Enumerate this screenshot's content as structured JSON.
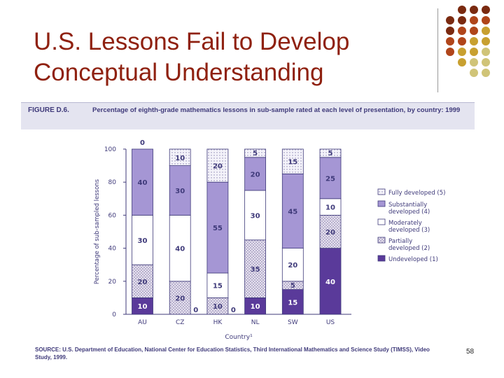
{
  "slide": {
    "title_line1": "U.S. Lessons Fail to Develop",
    "title_line2": "Conceptual Understanding",
    "page_number": "58",
    "title_color": "#8f2110",
    "decor_colors": [
      "#7a2a10",
      "#b0451a",
      "#c8a030",
      "#d0c478"
    ]
  },
  "figure": {
    "label": "FIGURE D.6.",
    "caption": "Percentage of eighth-grade mathematics lessons in sub-sample rated at each level of presentation, by country: 1999",
    "source": "SOURCE: U.S. Department of Education, National Center for Education Statistics, Third International Mathematics and Science Study (TIMSS), Video Study, 1999."
  },
  "chart_data": {
    "type": "bar",
    "stacked": true,
    "categories": [
      "AU",
      "CZ",
      "HK",
      "NL",
      "SW",
      "US"
    ],
    "xlabel": "Country¹",
    "ylabel": "Percentage of sub-sampled lessons",
    "ylim": [
      0,
      100
    ],
    "yticks": [
      0,
      20,
      40,
      60,
      80,
      100
    ],
    "legend_position": "right",
    "series": [
      {
        "name": "Undeveloped (1)",
        "values": [
          10,
          0,
          0,
          10,
          15,
          40
        ],
        "color": "#5a3a9a",
        "pattern": "solid"
      },
      {
        "name": "Partially developed (2)",
        "values": [
          20,
          20,
          10,
          35,
          5,
          20
        ],
        "color": "#d6cfe6",
        "pattern": "crosshatch"
      },
      {
        "name": "Moderately developed (3)",
        "values": [
          30,
          40,
          15,
          30,
          20,
          10
        ],
        "color": "#ffffff",
        "pattern": "blank"
      },
      {
        "name": "Substantially developed (4)",
        "values": [
          40,
          30,
          55,
          20,
          45,
          25
        ],
        "color": "#a596d4",
        "pattern": "solid"
      },
      {
        "name": "Fully developed (5)",
        "values": [
          0,
          10,
          20,
          5,
          15,
          5
        ],
        "color": "#ece9f6",
        "pattern": "dotted"
      }
    ],
    "legend_labels": [
      [
        "Fully developed (5)"
      ],
      [
        "Substantially",
        "developed (4)"
      ],
      [
        "Moderately",
        "developed (3)"
      ],
      [
        "Partially",
        "developed (2)"
      ],
      [
        "Undeveloped (1)"
      ]
    ]
  }
}
